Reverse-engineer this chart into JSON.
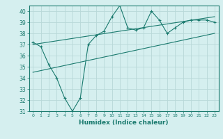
{
  "title": "",
  "xlabel": "Humidex (Indice chaleur)",
  "ylabel": "",
  "bg_color": "#d5efef",
  "grid_color": "#b8d8d8",
  "line_color": "#1a7a6e",
  "xlim": [
    -0.5,
    23.5
  ],
  "ylim": [
    31,
    40.5
  ],
  "yticks": [
    31,
    32,
    33,
    34,
    35,
    36,
    37,
    38,
    39,
    40
  ],
  "xticks": [
    0,
    1,
    2,
    3,
    4,
    5,
    6,
    7,
    8,
    9,
    10,
    11,
    12,
    13,
    14,
    15,
    16,
    17,
    18,
    19,
    20,
    21,
    22,
    23
  ],
  "main_x": [
    0,
    1,
    2,
    3,
    4,
    5,
    6,
    7,
    8,
    9,
    10,
    11,
    12,
    13,
    14,
    15,
    16,
    17,
    18,
    19,
    20,
    21,
    22,
    23
  ],
  "main_y": [
    37.2,
    36.8,
    35.2,
    34.0,
    32.2,
    31.0,
    32.2,
    37.0,
    37.8,
    38.2,
    39.5,
    40.5,
    38.5,
    38.3,
    38.5,
    40.0,
    39.2,
    38.0,
    38.5,
    39.0,
    39.2,
    39.2,
    39.2,
    39.0
  ],
  "upper_line_x": [
    0,
    23
  ],
  "upper_line_y": [
    37.0,
    39.5
  ],
  "lower_line_x": [
    0,
    23
  ],
  "lower_line_y": [
    34.5,
    38.0
  ]
}
